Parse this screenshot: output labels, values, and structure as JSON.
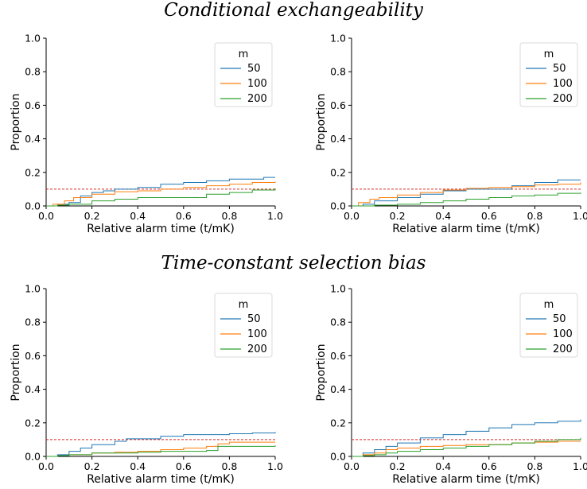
{
  "titles": [
    "Conditional exchangeability",
    "Time-constant selection bias"
  ],
  "chart_data": [
    {
      "type": "line",
      "subtype": "step",
      "xlabel": "Relative alarm time (t/mK)",
      "ylabel": "Proportion",
      "xlim": [
        0,
        1
      ],
      "ylim": [
        0,
        1
      ],
      "xticks": [
        "0.0",
        "0.2",
        "0.4",
        "0.6",
        "0.8",
        "1.0"
      ],
      "yticks": [
        "0.0",
        "0.2",
        "0.4",
        "0.6",
        "0.8",
        "1.0"
      ],
      "reference_line": {
        "y": 0.1,
        "color": "#d62728",
        "style": "dashed"
      },
      "legend": {
        "title": "m",
        "position": "top-right"
      },
      "series": [
        {
          "name": "50",
          "color": "#1f77b4",
          "x": [
            0.0,
            0.05,
            0.1,
            0.15,
            0.2,
            0.25,
            0.3,
            0.4,
            0.5,
            0.6,
            0.7,
            0.8,
            0.9,
            0.95,
            1.0
          ],
          "y": [
            0.0,
            0.01,
            0.02,
            0.06,
            0.08,
            0.09,
            0.1,
            0.11,
            0.13,
            0.14,
            0.15,
            0.16,
            0.16,
            0.17,
            0.17
          ]
        },
        {
          "name": "100",
          "color": "#ff7f0e",
          "x": [
            0.0,
            0.03,
            0.08,
            0.12,
            0.2,
            0.3,
            0.4,
            0.5,
            0.6,
            0.7,
            0.8,
            0.9,
            1.0
          ],
          "y": [
            0.0,
            0.01,
            0.03,
            0.05,
            0.07,
            0.085,
            0.09,
            0.1,
            0.11,
            0.12,
            0.13,
            0.14,
            0.145
          ]
        },
        {
          "name": "200",
          "color": "#2ca02c",
          "x": [
            0.0,
            0.05,
            0.1,
            0.2,
            0.3,
            0.4,
            0.6,
            0.7,
            0.8,
            0.9,
            1.0
          ],
          "y": [
            0.0,
            0.005,
            0.01,
            0.03,
            0.04,
            0.05,
            0.05,
            0.07,
            0.08,
            0.095,
            0.105
          ]
        }
      ]
    },
    {
      "type": "line",
      "subtype": "step",
      "xlabel": "Relative alarm time (t/mK)",
      "ylabel": "Proportion",
      "xlim": [
        0,
        1
      ],
      "ylim": [
        0,
        1
      ],
      "xticks": [
        "0.0",
        "0.2",
        "0.4",
        "0.6",
        "0.8",
        "1.0"
      ],
      "yticks": [
        "0.0",
        "0.2",
        "0.4",
        "0.6",
        "0.8",
        "1.0"
      ],
      "reference_line": {
        "y": 0.1,
        "color": "#d62728",
        "style": "dashed"
      },
      "legend": {
        "title": "m",
        "position": "top-right"
      },
      "series": [
        {
          "name": "50",
          "color": "#1f77b4",
          "x": [
            0.0,
            0.05,
            0.1,
            0.2,
            0.3,
            0.4,
            0.5,
            0.6,
            0.7,
            0.8,
            0.9,
            1.0
          ],
          "y": [
            0.0,
            0.01,
            0.03,
            0.05,
            0.07,
            0.09,
            0.1,
            0.1,
            0.12,
            0.14,
            0.155,
            0.155
          ]
        },
        {
          "name": "100",
          "color": "#ff7f0e",
          "x": [
            0.0,
            0.03,
            0.08,
            0.12,
            0.2,
            0.3,
            0.4,
            0.5,
            0.6,
            0.7,
            0.8,
            0.9,
            1.0
          ],
          "y": [
            0.0,
            0.02,
            0.04,
            0.05,
            0.065,
            0.08,
            0.095,
            0.105,
            0.11,
            0.115,
            0.125,
            0.13,
            0.14
          ]
        },
        {
          "name": "200",
          "color": "#2ca02c",
          "x": [
            0.0,
            0.1,
            0.2,
            0.3,
            0.4,
            0.5,
            0.6,
            0.7,
            0.8,
            0.9,
            1.0
          ],
          "y": [
            0.0,
            0.005,
            0.01,
            0.02,
            0.03,
            0.04,
            0.05,
            0.06,
            0.065,
            0.075,
            0.08
          ]
        }
      ]
    },
    {
      "type": "line",
      "subtype": "step",
      "xlabel": "Relative alarm time (t/mK)",
      "ylabel": "Proportion",
      "xlim": [
        0,
        1
      ],
      "ylim": [
        0,
        1
      ],
      "xticks": [
        "0.0",
        "0.2",
        "0.4",
        "0.6",
        "0.8",
        "1.0"
      ],
      "yticks": [
        "0.0",
        "0.2",
        "0.4",
        "0.6",
        "0.8",
        "1.0"
      ],
      "reference_line": {
        "y": 0.1,
        "color": "#d62728",
        "style": "dashed"
      },
      "legend": {
        "title": "m",
        "position": "top-right"
      },
      "series": [
        {
          "name": "50",
          "color": "#1f77b4",
          "x": [
            0.0,
            0.05,
            0.1,
            0.15,
            0.2,
            0.3,
            0.35,
            0.5,
            0.6,
            0.7,
            0.8,
            0.9,
            1.0
          ],
          "y": [
            0.0,
            0.01,
            0.03,
            0.05,
            0.07,
            0.09,
            0.105,
            0.12,
            0.13,
            0.13,
            0.135,
            0.14,
            0.145
          ]
        },
        {
          "name": "100",
          "color": "#ff7f0e",
          "x": [
            0.0,
            0.05,
            0.1,
            0.2,
            0.3,
            0.4,
            0.5,
            0.6,
            0.7,
            0.75,
            0.8,
            1.0
          ],
          "y": [
            0.0,
            0.005,
            0.01,
            0.02,
            0.025,
            0.03,
            0.04,
            0.05,
            0.06,
            0.075,
            0.085,
            0.085
          ]
        },
        {
          "name": "200",
          "color": "#2ca02c",
          "x": [
            0.0,
            0.05,
            0.1,
            0.2,
            0.3,
            0.4,
            0.5,
            0.6,
            0.7,
            0.75,
            1.0
          ],
          "y": [
            0.0,
            0.005,
            0.01,
            0.02,
            0.02,
            0.025,
            0.03,
            0.03,
            0.035,
            0.06,
            0.065
          ]
        }
      ]
    },
    {
      "type": "line",
      "subtype": "step",
      "xlabel": "Relative alarm time (t/mK)",
      "ylabel": "Proportion",
      "xlim": [
        0,
        1
      ],
      "ylim": [
        0,
        1
      ],
      "xticks": [
        "0.0",
        "0.2",
        "0.4",
        "0.6",
        "0.8",
        "1.0"
      ],
      "yticks": [
        "0.0",
        "0.2",
        "0.4",
        "0.6",
        "0.8",
        "1.0"
      ],
      "reference_line": {
        "y": 0.1,
        "color": "#d62728",
        "style": "dashed"
      },
      "legend": {
        "title": "m",
        "position": "top-right"
      },
      "series": [
        {
          "name": "50",
          "color": "#1f77b4",
          "x": [
            0.0,
            0.05,
            0.1,
            0.15,
            0.2,
            0.3,
            0.4,
            0.5,
            0.6,
            0.7,
            0.8,
            0.9,
            1.0
          ],
          "y": [
            0.0,
            0.02,
            0.04,
            0.06,
            0.08,
            0.11,
            0.13,
            0.15,
            0.17,
            0.19,
            0.2,
            0.21,
            0.22
          ]
        },
        {
          "name": "100",
          "color": "#ff7f0e",
          "x": [
            0.0,
            0.05,
            0.1,
            0.15,
            0.2,
            0.3,
            0.4,
            0.5,
            0.6,
            0.7,
            0.8,
            0.9,
            1.0
          ],
          "y": [
            0.0,
            0.01,
            0.02,
            0.04,
            0.05,
            0.06,
            0.065,
            0.07,
            0.07,
            0.08,
            0.085,
            0.09,
            0.09
          ]
        },
        {
          "name": "200",
          "color": "#2ca02c",
          "x": [
            0.0,
            0.05,
            0.1,
            0.15,
            0.2,
            0.3,
            0.4,
            0.5,
            0.6,
            0.7,
            0.8,
            0.9,
            1.0
          ],
          "y": [
            0.0,
            0.005,
            0.01,
            0.02,
            0.03,
            0.04,
            0.05,
            0.06,
            0.07,
            0.08,
            0.09,
            0.1,
            0.11
          ]
        }
      ]
    }
  ]
}
